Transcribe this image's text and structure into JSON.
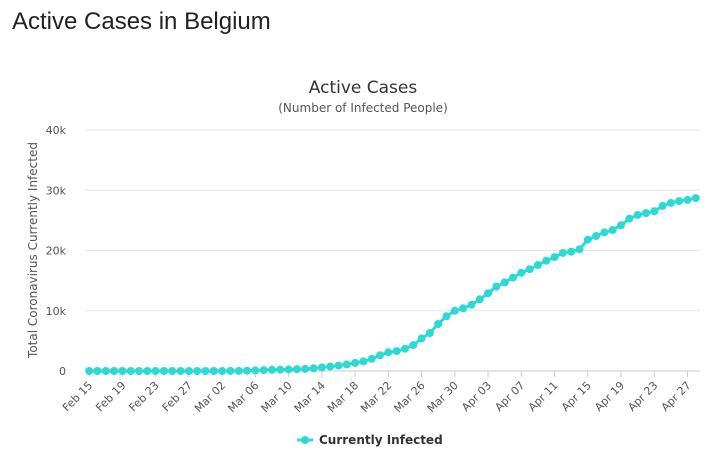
{
  "page": {
    "heading": "Active Cases in Belgium"
  },
  "chart_data": {
    "type": "line",
    "title": "Active Cases",
    "subtitle": "(Number of Infected People)",
    "xlabel": "",
    "ylabel": "Total Coronavirus Currently Infected",
    "ylim": [
      0,
      40000
    ],
    "y_ticks": [
      "0",
      "10k",
      "20k",
      "30k",
      "40k"
    ],
    "y_tick_values": [
      0,
      10000,
      20000,
      30000,
      40000
    ],
    "x_tick_labels": [
      "Feb 15",
      "Feb 19",
      "Feb 23",
      "Feb 27",
      "Mar 02",
      "Mar 06",
      "Mar 10",
      "Mar 14",
      "Mar 18",
      "Mar 22",
      "Mar 26",
      "Mar 30",
      "Apr 03",
      "Apr 07",
      "Apr 11",
      "Apr 15",
      "Apr 19",
      "Apr 23",
      "Apr 27"
    ],
    "grid": true,
    "legend_position": "bottom-center",
    "series": [
      {
        "name": "Currently Infected",
        "color": "#2cd9d5",
        "x": [
          "Feb 15",
          "Feb 16",
          "Feb 17",
          "Feb 18",
          "Feb 19",
          "Feb 20",
          "Feb 21",
          "Feb 22",
          "Feb 23",
          "Feb 24",
          "Feb 25",
          "Feb 26",
          "Feb 27",
          "Feb 28",
          "Feb 29",
          "Mar 01",
          "Mar 02",
          "Mar 03",
          "Mar 04",
          "Mar 05",
          "Mar 06",
          "Mar 07",
          "Mar 08",
          "Mar 09",
          "Mar 10",
          "Mar 11",
          "Mar 12",
          "Mar 13",
          "Mar 14",
          "Mar 15",
          "Mar 16",
          "Mar 17",
          "Mar 18",
          "Mar 19",
          "Mar 20",
          "Mar 21",
          "Mar 22",
          "Mar 23",
          "Mar 24",
          "Mar 25",
          "Mar 26",
          "Mar 27",
          "Mar 28",
          "Mar 29",
          "Mar 30",
          "Mar 31",
          "Apr 01",
          "Apr 02",
          "Apr 03",
          "Apr 04",
          "Apr 05",
          "Apr 06",
          "Apr 07",
          "Apr 08",
          "Apr 09",
          "Apr 10",
          "Apr 11",
          "Apr 12",
          "Apr 13",
          "Apr 14",
          "Apr 15",
          "Apr 16",
          "Apr 17",
          "Apr 18",
          "Apr 19",
          "Apr 20",
          "Apr 21",
          "Apr 22",
          "Apr 23",
          "Apr 24",
          "Apr 25",
          "Apr 26",
          "Apr 27",
          "Apr 28"
        ],
        "values": [
          1,
          1,
          1,
          1,
          1,
          1,
          1,
          1,
          1,
          1,
          1,
          1,
          1,
          1,
          1,
          1,
          5,
          10,
          20,
          50,
          100,
          150,
          200,
          230,
          260,
          300,
          350,
          450,
          600,
          750,
          900,
          1100,
          1350,
          1600,
          2000,
          2600,
          3100,
          3300,
          3700,
          4300,
          5400,
          6300,
          7800,
          9100,
          10000,
          10400,
          11000,
          11900,
          12900,
          14000,
          14700,
          15500,
          16300,
          16900,
          17600,
          18300,
          18900,
          19600,
          19800,
          20200,
          21800,
          22400,
          23000,
          23400,
          24200,
          25300,
          25900,
          26200,
          26500,
          27400,
          27900,
          28200,
          28400,
          28700
        ]
      }
    ]
  }
}
